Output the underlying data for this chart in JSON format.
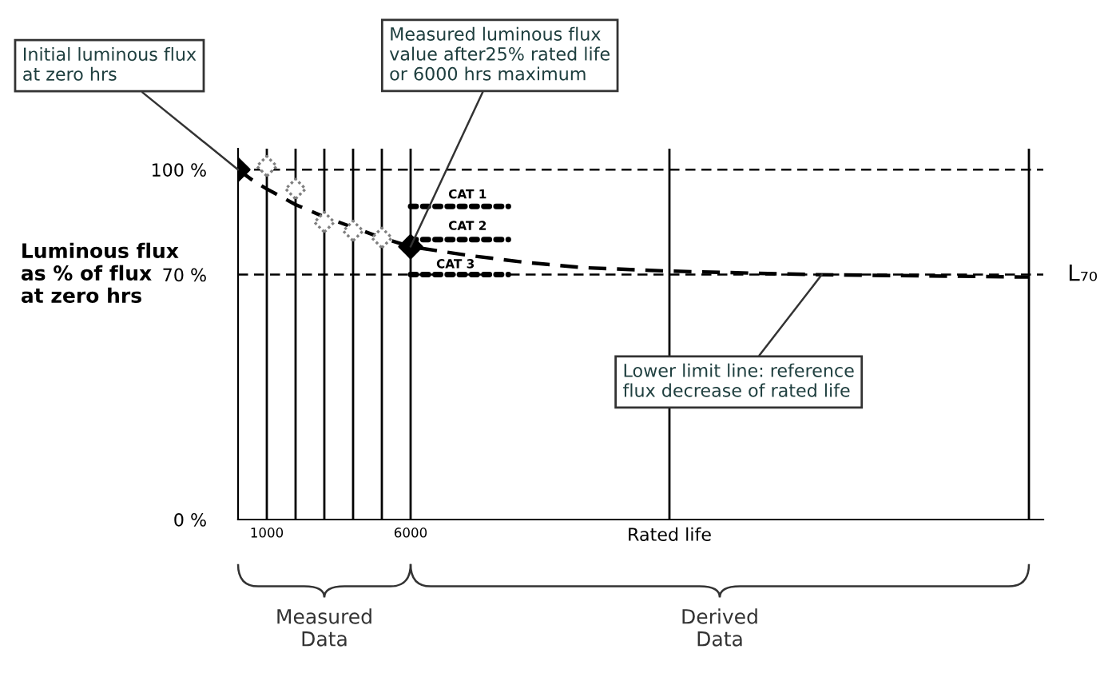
{
  "chart_data": {
    "type": "line",
    "ylabel": "Luminous flux\nas % of flux\nat zero hrs",
    "xlim": [
      0,
      28000
    ],
    "ylim": [
      0,
      106
    ],
    "xticks": [
      1000,
      6000,
      {
        "value": 15000,
        "label": "Rated life"
      }
    ],
    "yticks": [
      {
        "value": 0,
        "label": "0 %"
      },
      {
        "value": 70,
        "label": "70 %"
      },
      {
        "value": 100,
        "label": "100 %"
      }
    ],
    "grid": false,
    "legend": false,
    "series": [
      {
        "line_style": "dashed",
        "marker": "none",
        "color": "#000000",
        "x": [
          0,
          500,
          1000,
          2000,
          3000,
          4000,
          5000,
          6000,
          8000,
          10000,
          12000,
          15000,
          20000,
          27500
        ],
        "values": [
          100,
          97,
          94.5,
          90,
          86.5,
          83.5,
          80.5,
          78,
          75.5,
          73.5,
          72,
          71,
          70,
          69.3
        ]
      },
      {
        "type": "scatter",
        "marker": "diamond",
        "color": "#7f7f7f",
        "x": [
          1000,
          2000,
          3000,
          4000,
          5000
        ],
        "values": [
          101,
          94.5,
          85,
          82.5,
          80.5
        ]
      },
      {
        "type": "scatter",
        "marker": "diamond",
        "color": "#000000",
        "x": [
          0,
          6000
        ],
        "values": [
          100,
          78
        ]
      },
      {
        "line_style": "dotted",
        "marker": "none",
        "color": "#000000",
        "x": [
          6000,
          9400
        ],
        "values": [
          89.5,
          89.5
        ]
      },
      {
        "line_style": "dotted",
        "marker": "none",
        "color": "#000000",
        "x": [
          6000,
          9400
        ],
        "values": [
          80,
          80
        ]
      },
      {
        "line_style": "dotted",
        "marker": "none",
        "color": "#000000",
        "x": [
          6000,
          9400
        ],
        "values": [
          70,
          70
        ]
      }
    ],
    "ref_lines": [
      {
        "axis": "y",
        "value": 100,
        "line_style": "dashed",
        "color": "#000000"
      },
      {
        "axis": "y",
        "value": 70,
        "line_style": "dashed",
        "color": "#000000",
        "label": "L₇₀"
      },
      {
        "axis": "x",
        "value": 1000,
        "color": "#000000"
      },
      {
        "axis": "x",
        "value": 2000,
        "color": "#000000"
      },
      {
        "axis": "x",
        "value": 3000,
        "color": "#000000"
      },
      {
        "axis": "x",
        "value": 4000,
        "color": "#000000"
      },
      {
        "axis": "x",
        "value": 5000,
        "color": "#000000"
      },
      {
        "axis": "x",
        "value": 6000,
        "color": "#000000"
      },
      {
        "axis": "x",
        "value": 15000,
        "color": "#000000"
      },
      {
        "axis": "x",
        "value": 27500,
        "color": "#000000"
      }
    ],
    "annotations": [
      {
        "text": "Initial luminous flux\nat zero hrs",
        "x": 0,
        "y": 100
      },
      {
        "text": "Measured luminous flux\nvalue after25% rated life\nor 6000 hrs maximum",
        "x": 6000,
        "y": 78
      },
      {
        "text": "Lower limit line: reference\nflux decrease of rated life",
        "x": 20300,
        "y": 70
      },
      "CAT 1",
      "CAT 2",
      "CAT 3",
      "Measured\nData",
      "Derived\nData"
    ]
  }
}
